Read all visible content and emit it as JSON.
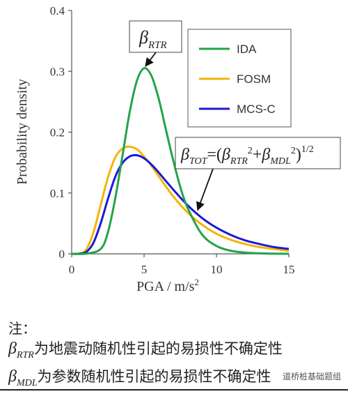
{
  "chart_data": {
    "type": "line",
    "xlabel_main": "PGA / m/s",
    "xlabel_sup": "2",
    "ylabel": "Probability density",
    "xlim": [
      0,
      15
    ],
    "ylim": [
      0,
      0.4
    ],
    "xticks": [
      "0",
      "5",
      "10",
      "15"
    ],
    "yticks": [
      "0",
      "0.1",
      "0.2",
      "0.3",
      "0.4"
    ],
    "grid": false,
    "legend_position": "top-right",
    "series": [
      {
        "name": "IDA",
        "color": "#22a34a",
        "x": [
          0,
          1,
          2,
          2.5,
          3,
          3.5,
          4,
          4.5,
          5,
          5.5,
          6,
          6.5,
          7,
          7.5,
          8,
          9,
          10,
          11,
          12,
          13,
          14,
          15
        ],
        "y": [
          0,
          0.0003,
          0.008,
          0.035,
          0.09,
          0.16,
          0.232,
          0.284,
          0.305,
          0.293,
          0.256,
          0.205,
          0.155,
          0.11,
          0.076,
          0.032,
          0.013,
          0.005,
          0.002,
          0.0008,
          0.0003,
          0.0001
        ]
      },
      {
        "name": "FOSM",
        "color": "#f5b400",
        "x": [
          0,
          0.5,
          1,
          1.5,
          2,
          2.5,
          3,
          3.5,
          4,
          4.5,
          5,
          5.5,
          6,
          7,
          8,
          9,
          10,
          11,
          12,
          13,
          14,
          15
        ],
        "y": [
          0,
          0.0004,
          0.007,
          0.035,
          0.08,
          0.125,
          0.158,
          0.173,
          0.176,
          0.172,
          0.16,
          0.145,
          0.128,
          0.095,
          0.068,
          0.048,
          0.033,
          0.023,
          0.016,
          0.011,
          0.008,
          0.005
        ]
      },
      {
        "name": "MCS-C",
        "color": "#1a1ad6",
        "x": [
          0,
          0.5,
          1,
          1.5,
          2,
          2.5,
          3,
          3.5,
          4,
          4.5,
          5,
          5.5,
          6,
          7,
          8,
          9,
          10,
          11,
          12,
          13,
          14,
          15
        ],
        "y": [
          0,
          0.0001,
          0.003,
          0.018,
          0.05,
          0.09,
          0.126,
          0.149,
          0.16,
          0.162,
          0.157,
          0.147,
          0.134,
          0.106,
          0.08,
          0.059,
          0.043,
          0.031,
          0.022,
          0.016,
          0.011,
          0.008
        ]
      }
    ],
    "annotations": [
      {
        "kind": "beta-rtr",
        "symbol": "β",
        "subscript": "RTR",
        "points_to_x": 5,
        "points_to_y": 0.305
      },
      {
        "kind": "beta-tot",
        "parts": [
          "β",
          "TOT",
          "=(",
          "β",
          "RTR",
          "2",
          "+",
          "β",
          "MDL",
          "2",
          ")",
          "1/2"
        ],
        "points_to_x": 8.7,
        "points_to_y": 0.072
      }
    ]
  },
  "notes": {
    "heading": "注：",
    "lines": [
      {
        "symbol": "β",
        "subscript": "RTR",
        "text": "为地震动随机性引起的易损性不确定性"
      },
      {
        "symbol": "β",
        "subscript": "MDL",
        "text": "为参数随机性引起的易损性不确定性"
      }
    ]
  },
  "watermark": "道桥桩基础题组"
}
